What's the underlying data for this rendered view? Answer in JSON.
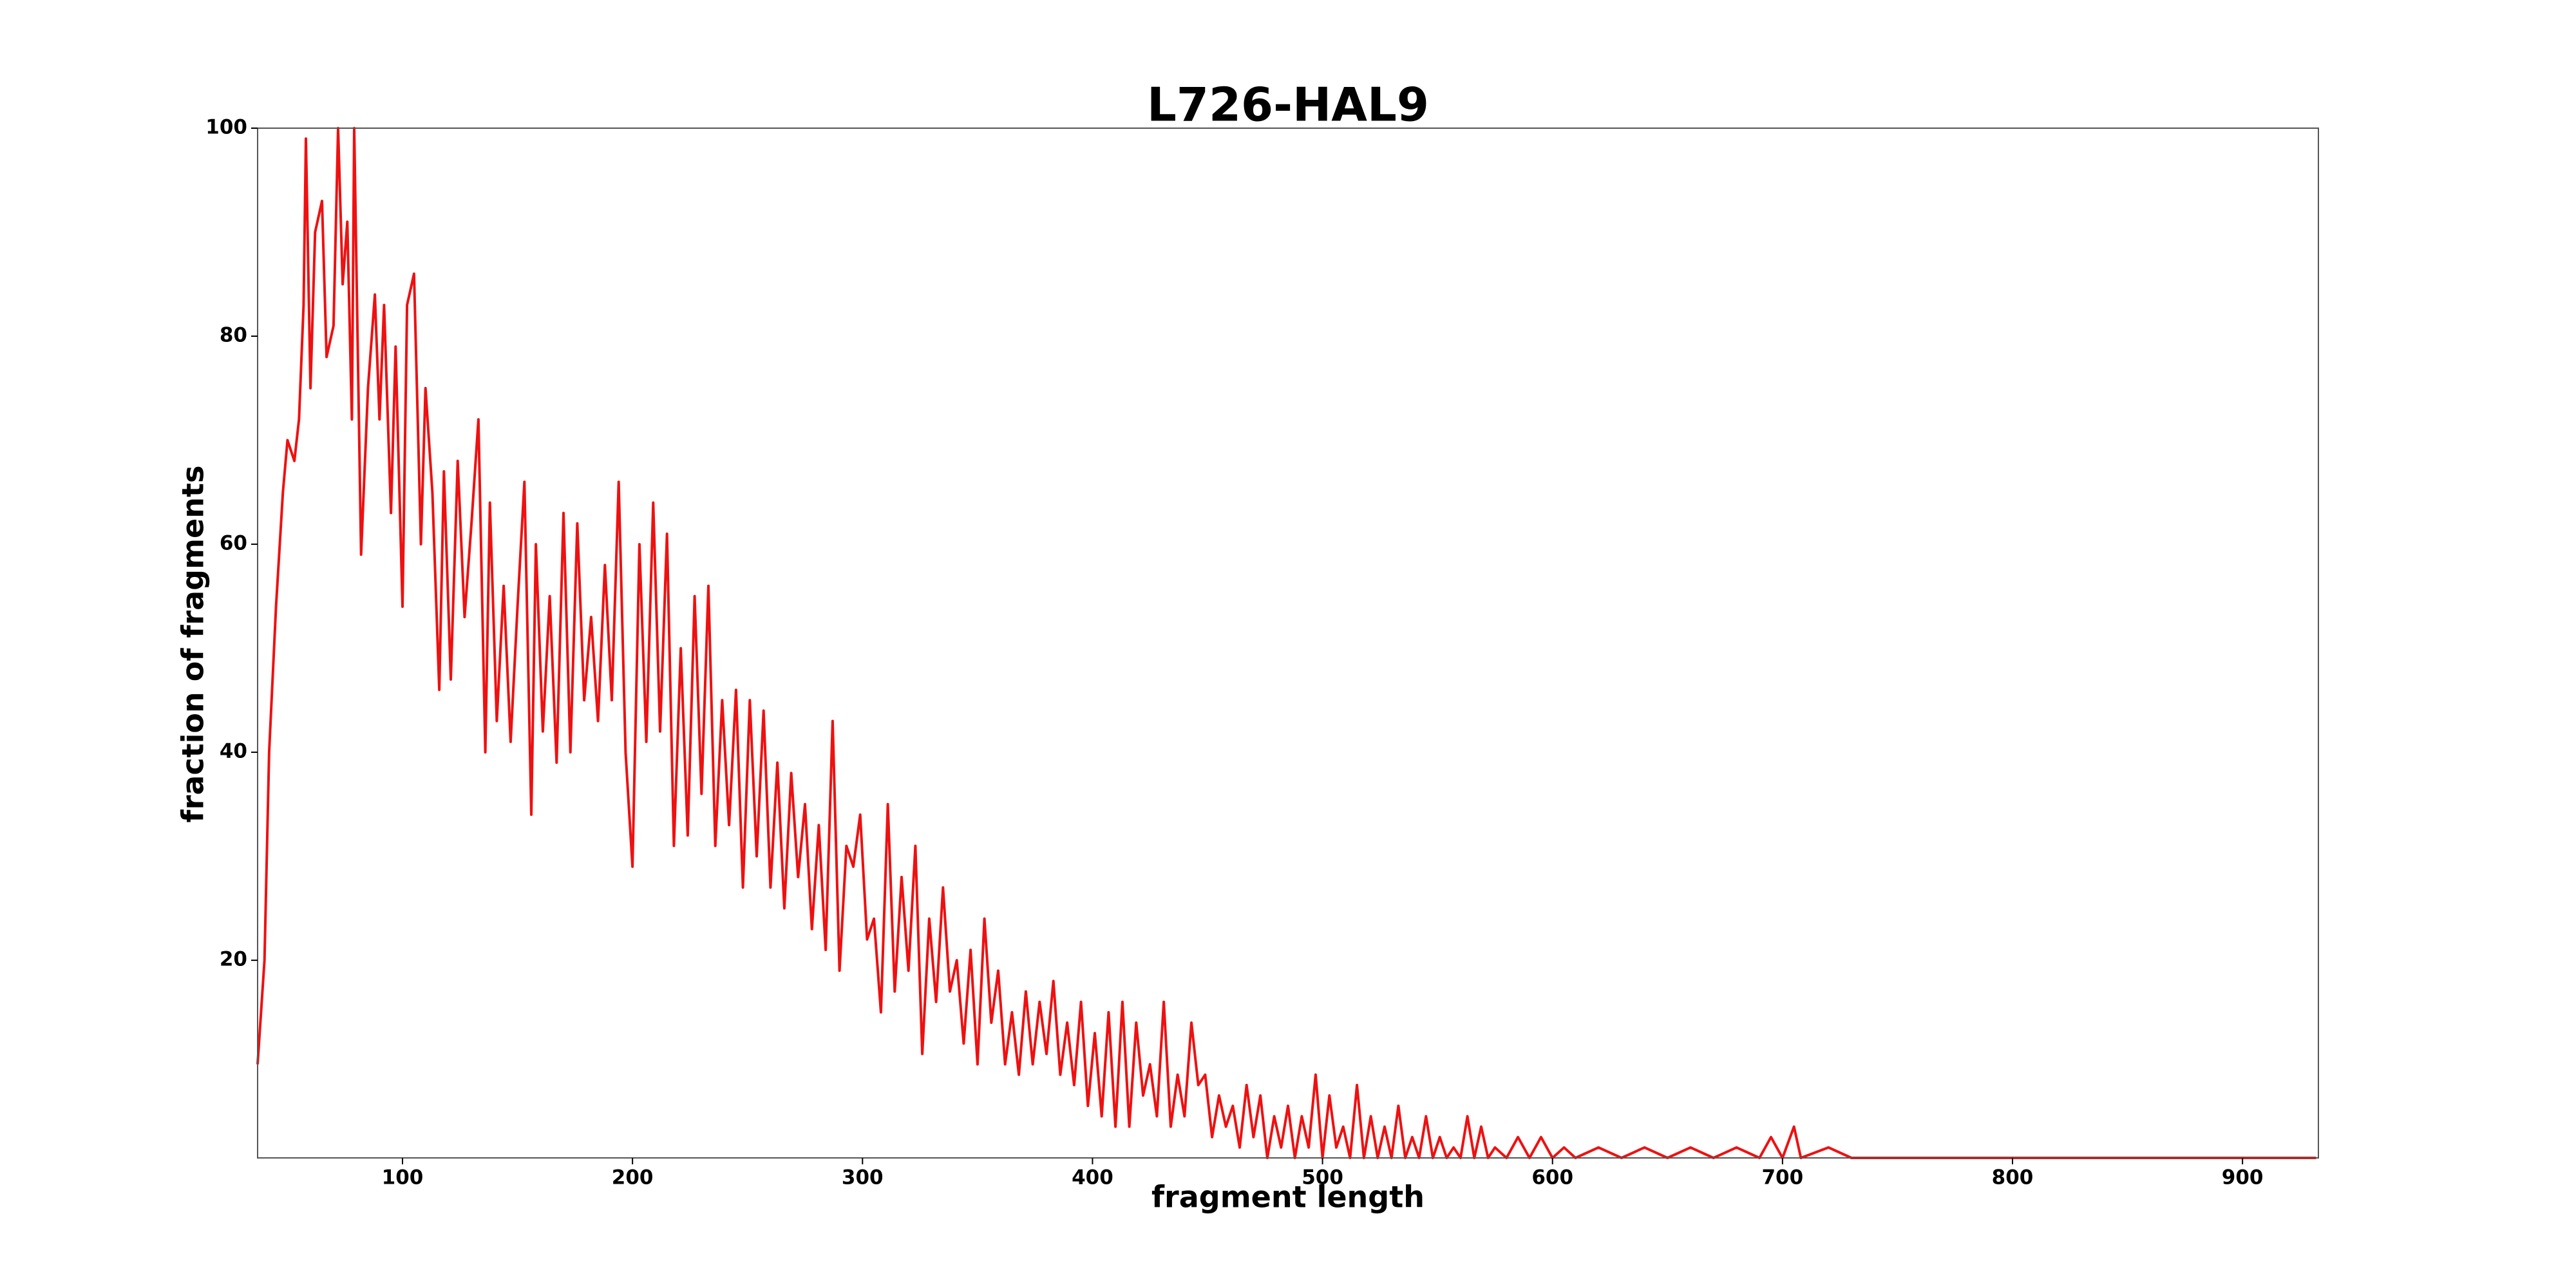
{
  "chart_data": {
    "type": "line",
    "title": "L726-HAL9",
    "x_label": "fragment length",
    "y_label": "fraction of fragments",
    "xlim": [
      37,
      933
    ],
    "ylim": [
      1,
      100
    ],
    "xticks": [
      100,
      200,
      300,
      400,
      500,
      600,
      700,
      800,
      900
    ],
    "yticks": [
      20,
      40,
      60,
      80,
      100
    ],
    "series": [
      {
        "name": "L726-HAL9",
        "color": "#ee1111",
        "x": [
          37,
          40,
          42,
          45,
          48,
          50,
          53,
          55,
          57,
          58,
          60,
          62,
          65,
          67,
          70,
          72,
          74,
          76,
          78,
          79,
          82,
          85,
          88,
          90,
          92,
          95,
          97,
          100,
          102,
          105,
          108,
          110,
          113,
          116,
          118,
          121,
          124,
          127,
          130,
          133,
          136,
          138,
          141,
          144,
          147,
          150,
          153,
          156,
          158,
          161,
          164,
          167,
          170,
          173,
          176,
          179,
          182,
          185,
          188,
          191,
          194,
          197,
          200,
          203,
          206,
          209,
          212,
          215,
          218,
          221,
          224,
          227,
          230,
          233,
          236,
          239,
          242,
          245,
          248,
          251,
          254,
          257,
          260,
          263,
          266,
          269,
          272,
          275,
          278,
          281,
          284,
          287,
          290,
          293,
          296,
          299,
          302,
          305,
          308,
          311,
          314,
          317,
          320,
          323,
          326,
          329,
          332,
          335,
          338,
          341,
          344,
          347,
          350,
          353,
          356,
          359,
          362,
          365,
          368,
          371,
          374,
          377,
          380,
          383,
          386,
          389,
          392,
          395,
          398,
          401,
          404,
          407,
          410,
          413,
          416,
          419,
          422,
          425,
          428,
          431,
          434,
          437,
          440,
          443,
          446,
          449,
          452,
          455,
          458,
          461,
          464,
          467,
          470,
          473,
          476,
          479,
          482,
          485,
          488,
          491,
          494,
          497,
          500,
          503,
          506,
          509,
          512,
          515,
          518,
          521,
          524,
          527,
          530,
          533,
          536,
          539,
          542,
          545,
          548,
          551,
          554,
          557,
          560,
          563,
          566,
          569,
          572,
          575,
          580,
          585,
          590,
          595,
          600,
          605,
          610,
          620,
          630,
          640,
          650,
          660,
          670,
          680,
          690,
          695,
          700,
          705,
          708,
          720,
          730,
          932
        ],
        "values": [
          10,
          20,
          40,
          54,
          65,
          70,
          68,
          72,
          83,
          99,
          75,
          90,
          93,
          78,
          81,
          100,
          85,
          91,
          72,
          100,
          59,
          75,
          84,
          72,
          83,
          63,
          79,
          54,
          83,
          86,
          60,
          75,
          65,
          46,
          67,
          47,
          68,
          53,
          62,
          72,
          40,
          64,
          43,
          56,
          41,
          54,
          66,
          34,
          60,
          42,
          55,
          39,
          63,
          40,
          62,
          45,
          53,
          43,
          58,
          45,
          66,
          40,
          29,
          60,
          41,
          64,
          42,
          61,
          31,
          50,
          32,
          55,
          36,
          56,
          31,
          45,
          33,
          46,
          27,
          45,
          30,
          44,
          27,
          39,
          25,
          38,
          28,
          35,
          23,
          33,
          21,
          43,
          19,
          31,
          29,
          34,
          22,
          24,
          15,
          35,
          17,
          28,
          19,
          31,
          11,
          24,
          16,
          27,
          17,
          20,
          12,
          21,
          10,
          24,
          14,
          19,
          10,
          15,
          9,
          17,
          10,
          16,
          11,
          18,
          9,
          14,
          8,
          16,
          6,
          13,
          5,
          15,
          4,
          16,
          4,
          14,
          7,
          10,
          5,
          16,
          4,
          9,
          5,
          14,
          8,
          9,
          3,
          7,
          4,
          6,
          2,
          8,
          3,
          7,
          1,
          5,
          2,
          6,
          1,
          5,
          2,
          9,
          1,
          7,
          2,
          4,
          1,
          8,
          1,
          5,
          1,
          4,
          1,
          6,
          1,
          3,
          1,
          5,
          1,
          3,
          1,
          2,
          1,
          5,
          1,
          4,
          1,
          2,
          1,
          3,
          1,
          3,
          1,
          2,
          1,
          2,
          1,
          2,
          1,
          2,
          1,
          2,
          1,
          3,
          1,
          4,
          1,
          2,
          1,
          1
        ]
      }
    ]
  }
}
